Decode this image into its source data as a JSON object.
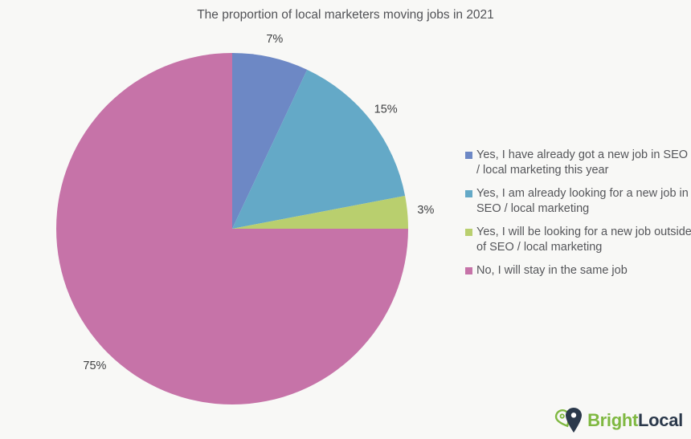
{
  "chart_data": {
    "type": "pie",
    "title": "The proportion of local marketers moving jobs in 2021",
    "start_angle_deg": 0,
    "direction": "clockwise",
    "legend_position": "right",
    "grid": false,
    "slices": [
      {
        "label": "Yes, I have already got a new job in SEO / local marketing this year",
        "value": 7,
        "display": "7%",
        "color": "#6d88c5"
      },
      {
        "label": "Yes, I am already looking for a new job in SEO / local marketing",
        "value": 15,
        "display": "15%",
        "color": "#64a9c7"
      },
      {
        "label": "Yes, I will be looking for a new job outside of SEO / local marketing",
        "value": 3,
        "display": "3%",
        "color": "#b9cf6e"
      },
      {
        "label": "No, I will stay in the same job",
        "value": 75,
        "display": "75%",
        "color": "#c673a8"
      }
    ]
  },
  "branding": {
    "logo_part1": "Bright",
    "logo_part2": "Local",
    "logo_green": "#7fb841",
    "logo_navy": "#2b394b"
  },
  "colors": {
    "background": "#f8f8f6",
    "title_text": "#515256",
    "legend_text": "#55565a",
    "value_label_text": "#3f4042"
  }
}
